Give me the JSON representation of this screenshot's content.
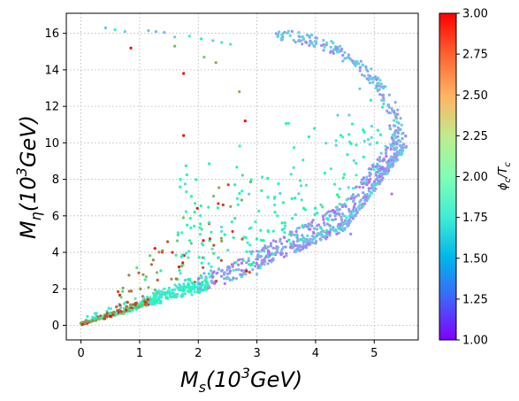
{
  "chart_data": {
    "type": "scatter",
    "title": "",
    "xlabel": {
      "base": "M",
      "sub": "s",
      "unit_pre": "(10",
      "sup": "3",
      "unit_post": "GeV)"
    },
    "ylabel": {
      "base": "M",
      "sub": "η",
      "unit_pre": "(10",
      "sup": "3",
      "unit_post": "GeV)"
    },
    "xlim": [
      -0.25,
      5.75
    ],
    "ylim": [
      -0.8,
      17.1
    ],
    "xticks": [
      0,
      1,
      2,
      3,
      4,
      5
    ],
    "yticks": [
      0,
      2,
      4,
      6,
      8,
      10,
      12,
      14,
      16
    ],
    "grid": true,
    "colorbar": {
      "label": {
        "base": "ϕ",
        "sub_c": "c",
        "mid": "/T",
        "sub_c2": "c"
      },
      "range": [
        1.0,
        3.0
      ],
      "ticks": [
        "1.00",
        "1.25",
        "1.50",
        "1.75",
        "2.00",
        "2.25",
        "2.50",
        "2.75",
        "3.00"
      ],
      "colormap": "rainbow"
    },
    "points_description": "Points forming a wedge from origin; upper branch up to ~16.3, lower branch bending to (5.55, 9.8); color ϕc/Tc from ~1.25 (blue) to 3.0 (red).",
    "points_sample": [
      {
        "x": 0.42,
        "y": 16.3,
        "c": 1.55
      },
      {
        "x": 0.85,
        "y": 15.2,
        "c": 3.0
      },
      {
        "x": 1.75,
        "y": 13.8,
        "c": 3.0
      },
      {
        "x": 1.75,
        "y": 10.4,
        "c": 3.0
      },
      {
        "x": 2.8,
        "y": 11.2,
        "c": 3.0
      },
      {
        "x": 5.55,
        "y": 9.8,
        "c": 1.45
      },
      {
        "x": 5.3,
        "y": 7.2,
        "c": 1.3
      },
      {
        "x": 4.6,
        "y": 5.0,
        "c": 1.35
      },
      {
        "x": 3.0,
        "y": 2.8,
        "c": 1.55
      },
      {
        "x": 0.5,
        "y": 0.5,
        "c": 3.0
      }
    ]
  }
}
